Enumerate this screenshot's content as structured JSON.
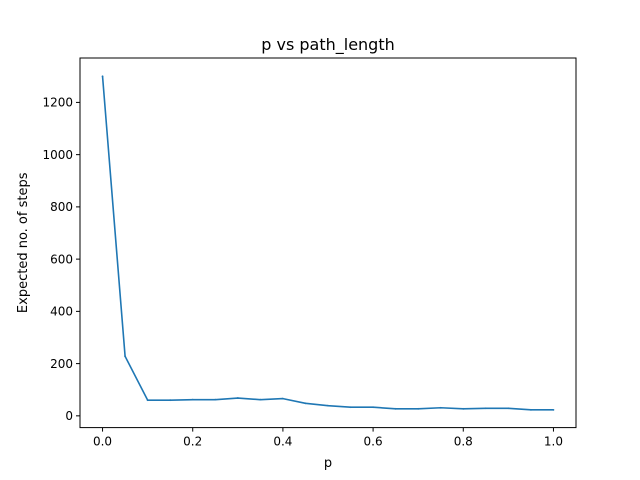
{
  "chart_data": {
    "type": "line",
    "title": "p vs path_length",
    "xlabel": "p",
    "ylabel": "Expected no. of steps",
    "xlim": [
      -0.05,
      1.05
    ],
    "ylim": [
      -45,
      1370
    ],
    "xticks": [
      0.0,
      0.2,
      0.4,
      0.6,
      0.8,
      1.0
    ],
    "xtick_labels": [
      "0.0",
      "0.2",
      "0.4",
      "0.6",
      "0.8",
      "1.0"
    ],
    "yticks": [
      0,
      200,
      400,
      600,
      800,
      1000,
      1200
    ],
    "ytick_labels": [
      "0",
      "200",
      "400",
      "600",
      "800",
      "1000",
      "1200"
    ],
    "grid": false,
    "series": [
      {
        "color": "#1f77b4",
        "x": [
          0.0,
          0.05,
          0.1,
          0.15,
          0.2,
          0.25,
          0.3,
          0.35,
          0.4,
          0.45,
          0.5,
          0.55,
          0.6,
          0.65,
          0.7,
          0.75,
          0.8,
          0.85,
          0.9,
          0.95,
          1.0
        ],
        "y": [
          1300,
          228,
          60,
          60,
          62,
          62,
          68,
          62,
          66,
          48,
          39,
          33,
          33,
          27,
          27,
          31,
          27,
          29,
          29,
          23,
          23
        ]
      }
    ]
  }
}
